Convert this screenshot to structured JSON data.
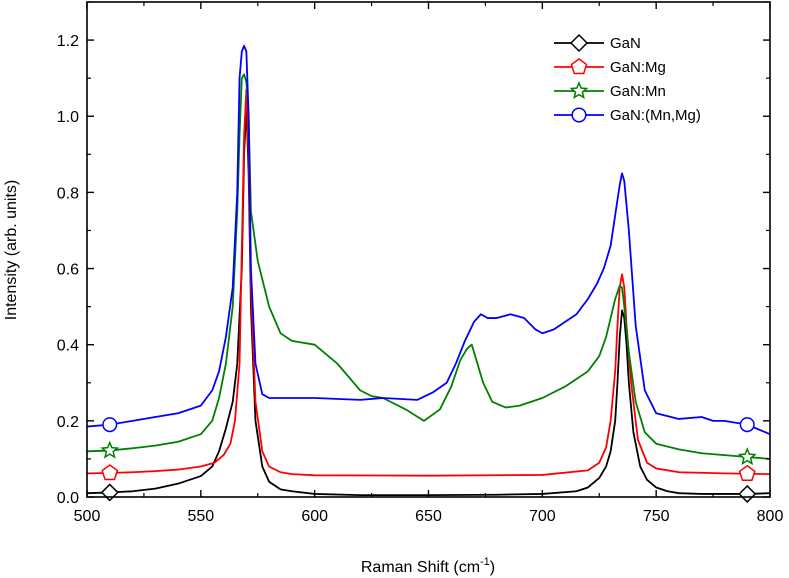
{
  "chart_data": {
    "type": "line",
    "title": "",
    "xlabel": "Raman Shift (cm",
    "xlabel_sup": "-1",
    "xlabel_close": ")",
    "ylabel": "Intensity (arb. units)",
    "xlim": [
      500,
      800
    ],
    "ylim": [
      0,
      1.3
    ],
    "x_ticks": [
      500,
      550,
      600,
      650,
      700,
      750,
      800
    ],
    "x_tick_labels": [
      "500",
      "550",
      "600",
      "650",
      "700",
      "750",
      "800"
    ],
    "y_ticks": [
      0.0,
      0.2,
      0.4,
      0.6,
      0.8,
      1.0,
      1.2
    ],
    "y_tick_labels": [
      "0.0",
      "0.2",
      "0.4",
      "0.6",
      "0.8",
      "1.0",
      "1.2"
    ],
    "grid": false,
    "legend_position": "top-right",
    "marker_x": [
      510,
      790
    ],
    "series": [
      {
        "name": "GaN",
        "color": "#000000",
        "marker": "diamond",
        "x": [
          500,
          510,
          520,
          530,
          540,
          550,
          555,
          558,
          561,
          564,
          566,
          568,
          569,
          570,
          571,
          572,
          574,
          577,
          580,
          585,
          590,
          600,
          620,
          650,
          680,
          700,
          715,
          720,
          725,
          728,
          730,
          732,
          733,
          734,
          735,
          736,
          737,
          738,
          740,
          743,
          746,
          750,
          755,
          760,
          770,
          780,
          790,
          800
        ],
        "y": [
          0.01,
          0.012,
          0.015,
          0.022,
          0.035,
          0.055,
          0.08,
          0.12,
          0.18,
          0.25,
          0.35,
          0.6,
          0.9,
          1.03,
          0.85,
          0.5,
          0.2,
          0.08,
          0.04,
          0.02,
          0.015,
          0.008,
          0.005,
          0.005,
          0.006,
          0.008,
          0.015,
          0.025,
          0.05,
          0.08,
          0.12,
          0.2,
          0.3,
          0.42,
          0.49,
          0.47,
          0.4,
          0.3,
          0.17,
          0.08,
          0.045,
          0.025,
          0.015,
          0.01,
          0.008,
          0.008,
          0.008,
          0.01
        ]
      },
      {
        "name": "GaN:Mg",
        "color": "#ff0000",
        "marker": "pentagon",
        "x": [
          500,
          510,
          520,
          530,
          540,
          550,
          556,
          560,
          563,
          565,
          567,
          568,
          569,
          570,
          571,
          572,
          574,
          577,
          580,
          585,
          590,
          600,
          650,
          700,
          720,
          725,
          728,
          730,
          732,
          733,
          734,
          735,
          736,
          737,
          739,
          742,
          746,
          750,
          760,
          780,
          800
        ],
        "y": [
          0.062,
          0.063,
          0.065,
          0.068,
          0.072,
          0.08,
          0.09,
          0.11,
          0.14,
          0.2,
          0.35,
          0.65,
          0.95,
          1.07,
          0.9,
          0.55,
          0.25,
          0.12,
          0.08,
          0.065,
          0.06,
          0.057,
          0.056,
          0.058,
          0.07,
          0.09,
          0.13,
          0.2,
          0.33,
          0.45,
          0.55,
          0.585,
          0.55,
          0.45,
          0.3,
          0.15,
          0.09,
          0.075,
          0.065,
          0.062,
          0.06
        ]
      },
      {
        "name": "GaN:Mn",
        "color": "#008000",
        "marker": "star",
        "x": [
          500,
          510,
          520,
          530,
          540,
          550,
          555,
          558,
          561,
          564,
          566,
          567,
          568,
          569,
          570,
          571,
          572,
          575,
          580,
          585,
          590,
          600,
          610,
          620,
          625,
          630,
          640,
          648,
          655,
          660,
          664,
          667,
          669,
          671,
          674,
          678,
          684,
          690,
          700,
          710,
          720,
          725,
          728,
          730,
          732,
          734,
          735,
          736,
          738,
          741,
          745,
          750,
          760,
          770,
          780,
          790,
          800
        ],
        "y": [
          0.12,
          0.122,
          0.128,
          0.135,
          0.145,
          0.165,
          0.2,
          0.26,
          0.35,
          0.5,
          0.75,
          0.95,
          1.1,
          1.11,
          1.09,
          1.0,
          0.75,
          0.62,
          0.5,
          0.43,
          0.41,
          0.4,
          0.35,
          0.28,
          0.265,
          0.26,
          0.23,
          0.2,
          0.23,
          0.29,
          0.36,
          0.39,
          0.4,
          0.36,
          0.3,
          0.25,
          0.235,
          0.24,
          0.26,
          0.29,
          0.33,
          0.37,
          0.42,
          0.47,
          0.52,
          0.555,
          0.55,
          0.5,
          0.38,
          0.25,
          0.17,
          0.14,
          0.125,
          0.115,
          0.11,
          0.105,
          0.1
        ]
      },
      {
        "name": "GaN:(Mn,Mg)",
        "color": "#0000ff",
        "marker": "circle",
        "x": [
          500,
          510,
          520,
          530,
          540,
          550,
          555,
          558,
          561,
          564,
          566,
          567,
          568,
          569,
          570,
          571,
          572,
          574,
          577,
          580,
          590,
          600,
          620,
          630,
          645,
          652,
          658,
          662,
          666,
          670,
          673,
          676,
          680,
          686,
          692,
          697,
          700,
          705,
          710,
          715,
          720,
          724,
          727,
          730,
          732,
          734,
          735,
          736,
          738,
          741,
          745,
          750,
          760,
          770,
          775,
          780,
          790,
          800
        ],
        "y": [
          0.185,
          0.19,
          0.2,
          0.21,
          0.22,
          0.24,
          0.28,
          0.33,
          0.42,
          0.55,
          0.8,
          1.1,
          1.17,
          1.185,
          1.17,
          1.0,
          0.6,
          0.35,
          0.27,
          0.26,
          0.26,
          0.26,
          0.255,
          0.26,
          0.255,
          0.275,
          0.3,
          0.35,
          0.41,
          0.46,
          0.48,
          0.47,
          0.47,
          0.48,
          0.47,
          0.44,
          0.43,
          0.44,
          0.46,
          0.48,
          0.52,
          0.56,
          0.6,
          0.66,
          0.74,
          0.82,
          0.85,
          0.83,
          0.7,
          0.45,
          0.28,
          0.22,
          0.205,
          0.21,
          0.2,
          0.2,
          0.19,
          0.165
        ]
      }
    ]
  }
}
